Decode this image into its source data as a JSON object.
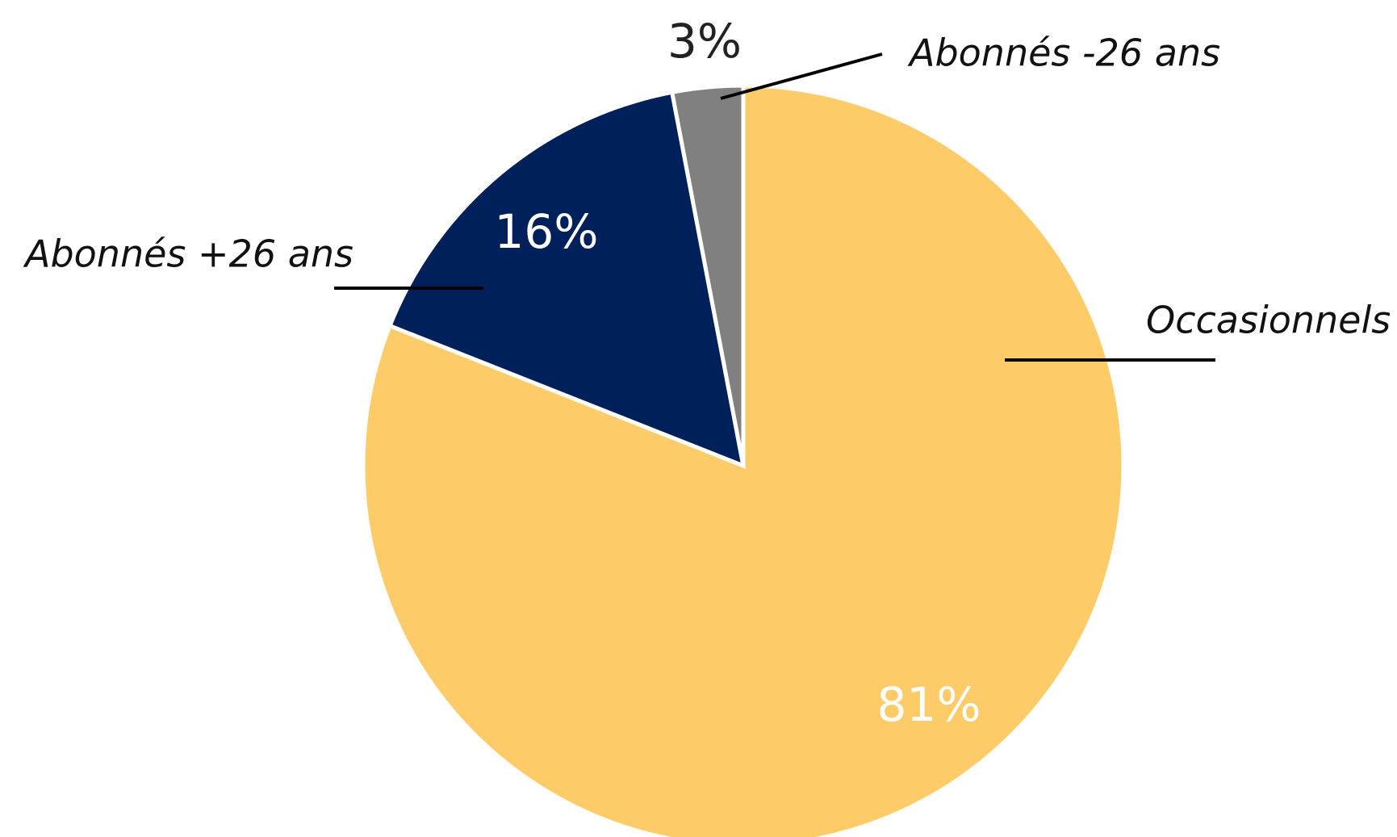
{
  "chart_data": {
    "type": "pie",
    "categories": [
      "Occasionnels",
      "Abonnés +26 ans",
      "Abonnés -26 ans"
    ],
    "values": [
      81,
      16,
      3
    ],
    "value_labels": [
      "81%",
      "16%",
      "3%"
    ],
    "colors": [
      "#fecb69",
      "#00205b",
      "#808080"
    ],
    "start_angle": 0,
    "direction": "clockwise"
  }
}
